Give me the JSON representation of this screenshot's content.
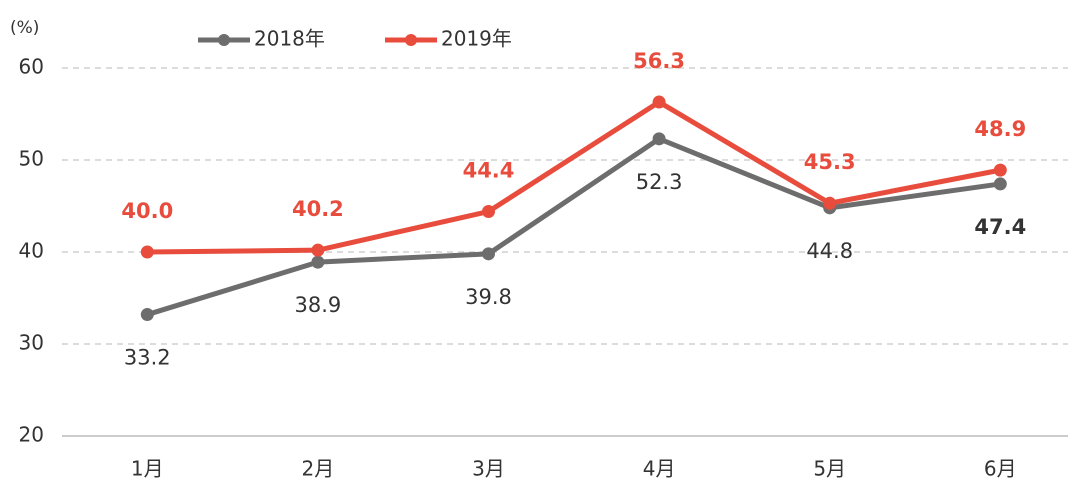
{
  "chart_data": {
    "type": "line",
    "y_axis_label": "(%)",
    "categories": [
      "1月",
      "2月",
      "3月",
      "4月",
      "5月",
      "6月"
    ],
    "series": [
      {
        "name": "2018年",
        "color": "#6d6d6d",
        "values": [
          33.2,
          38.9,
          39.8,
          52.3,
          44.8,
          47.4
        ],
        "value_labels": [
          "33.2",
          "38.9",
          "39.8",
          "52.3",
          "44.8",
          "47.4"
        ]
      },
      {
        "name": "2019年",
        "color": "#e84c3d",
        "values": [
          40.0,
          40.2,
          44.4,
          56.3,
          45.3,
          48.9
        ],
        "value_labels": [
          "40.0",
          "40.2",
          "44.4",
          "56.3",
          "45.3",
          "48.9"
        ]
      }
    ],
    "ylim": [
      20,
      60
    ],
    "yticks": [
      20,
      30,
      40,
      50,
      60
    ],
    "grid": true,
    "legend": "top"
  }
}
